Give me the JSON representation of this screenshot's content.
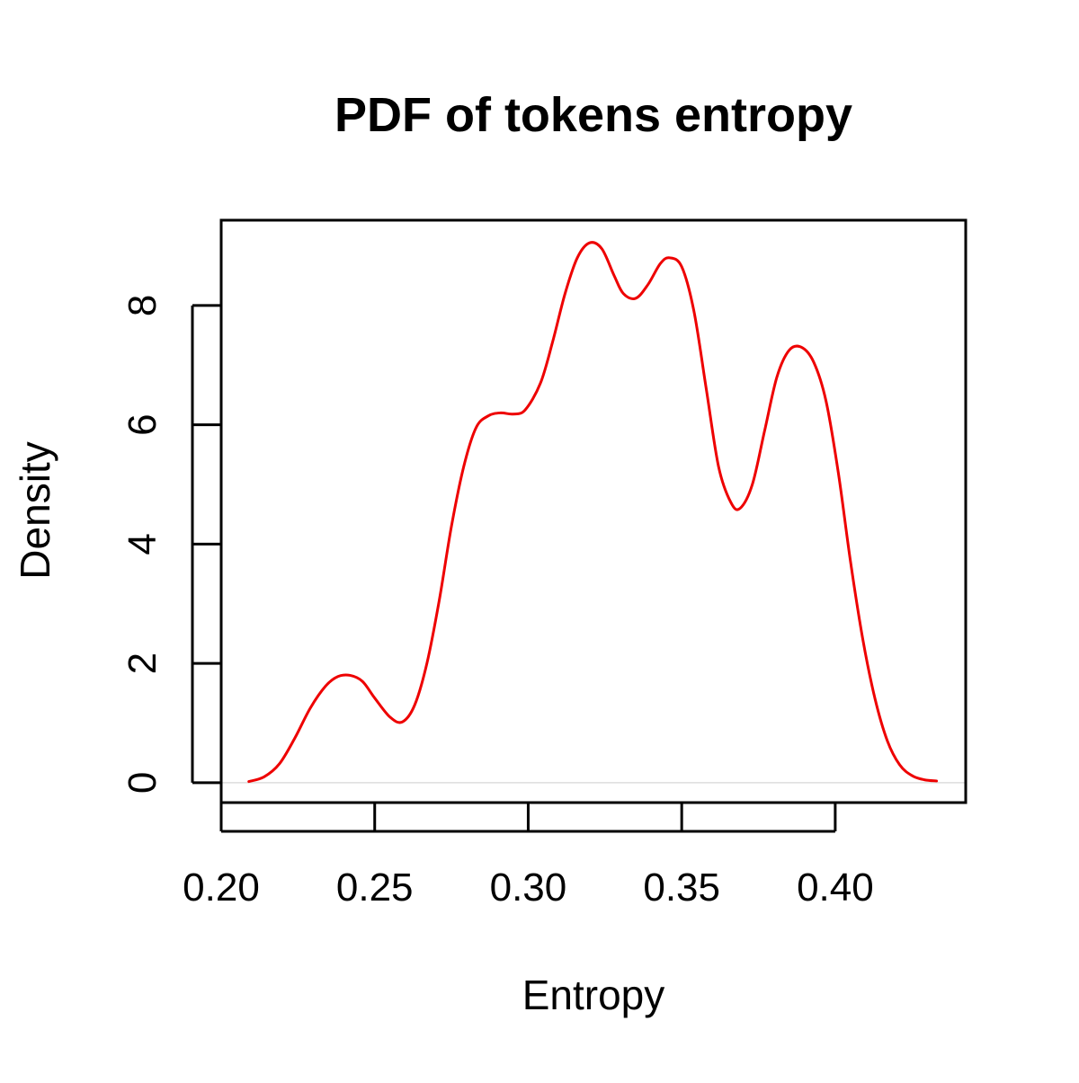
{
  "chart_data": {
    "type": "line",
    "title": "PDF of tokens entropy",
    "xlabel": "Entropy",
    "ylabel": "Density",
    "xlim": [
      0.2,
      0.4425
    ],
    "ylim": [
      0,
      9.43
    ],
    "x_ticks": [
      0.2,
      0.25,
      0.3,
      0.35,
      0.4
    ],
    "x_tick_labels": [
      "0.20",
      "0.25",
      "0.30",
      "0.35",
      "0.40"
    ],
    "y_ticks": [
      0,
      2,
      4,
      6,
      8
    ],
    "y_tick_labels": [
      "0",
      "2",
      "4",
      "6",
      "8"
    ],
    "grid": false,
    "legend": "none",
    "baseline": 0,
    "colors": {
      "series": "#ee0000",
      "axes": "#000000",
      "baseline": "#dddddd"
    },
    "series": [
      {
        "color": "#ee0000",
        "x": [
          0.209,
          0.214,
          0.219,
          0.224,
          0.229,
          0.234,
          0.238,
          0.242,
          0.246,
          0.25,
          0.255,
          0.259,
          0.263,
          0.267,
          0.271,
          0.275,
          0.279,
          0.283,
          0.287,
          0.291,
          0.295,
          0.299,
          0.304,
          0.308,
          0.312,
          0.316,
          0.32,
          0.324,
          0.328,
          0.331,
          0.335,
          0.339,
          0.343,
          0.346,
          0.35,
          0.354,
          0.358,
          0.362,
          0.366,
          0.369,
          0.373,
          0.377,
          0.381,
          0.385,
          0.389,
          0.393,
          0.397,
          0.401,
          0.405,
          0.409,
          0.413,
          0.417,
          0.421,
          0.425,
          0.429,
          0.433
        ],
        "y": [
          0.02,
          0.1,
          0.32,
          0.75,
          1.25,
          1.62,
          1.78,
          1.8,
          1.7,
          1.42,
          1.1,
          1.02,
          1.3,
          2.0,
          3.05,
          4.3,
          5.3,
          5.95,
          6.15,
          6.2,
          6.18,
          6.25,
          6.7,
          7.4,
          8.2,
          8.8,
          9.05,
          8.95,
          8.5,
          8.2,
          8.12,
          8.35,
          8.7,
          8.8,
          8.65,
          7.9,
          6.6,
          5.3,
          4.7,
          4.6,
          5.0,
          5.9,
          6.8,
          7.25,
          7.3,
          7.05,
          6.4,
          5.2,
          3.7,
          2.4,
          1.4,
          0.7,
          0.3,
          0.12,
          0.05,
          0.03
        ]
      }
    ]
  }
}
